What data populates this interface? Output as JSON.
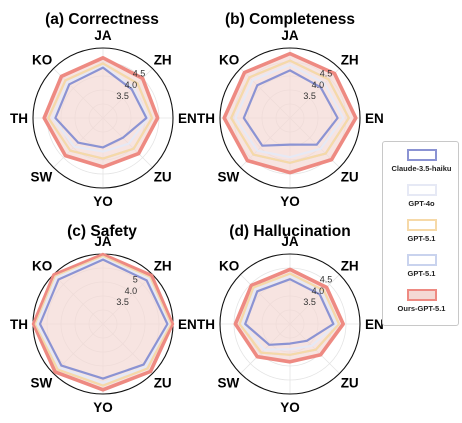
{
  "axes": [
    "JA",
    "ZH",
    "EN",
    "ZU",
    "YO",
    "SW",
    "TH",
    "KO"
  ],
  "legend_entries": [
    "Claude-3.5-haiku",
    "GPT-4o",
    "GPT-5.1",
    "GPT-5.1",
    "Ours-GPT-5.1"
  ],
  "colors": {
    "Claude-3.5-haiku": "#8b93d3",
    "GPT-4o": "#e6e9f5",
    "GPT-5.1-orange": "#f6d9a8",
    "GPT-5.1-blue": "#c9d3ee",
    "Ours-GPT-5.1": "#ee8a82",
    "ours_fill": "#f4d9d4"
  },
  "chart_data": [
    {
      "type": "radar",
      "title": "(a) Correctness",
      "categories": [
        "JA",
        "ZH",
        "EN",
        "ZU",
        "YO",
        "SW",
        "TH",
        "KO"
      ],
      "rlim": [
        2.5,
        5.0
      ],
      "rticks": [
        "3.5",
        "4.0",
        "4.5"
      ],
      "series": [
        {
          "name": "Claude-3.5-haiku",
          "values": [
            4.3,
            3.95,
            4.05,
            3.5,
            3.55,
            3.75,
            4.2,
            4.2
          ]
        },
        {
          "name": "GPT-4o",
          "values": [
            4.35,
            4.05,
            4.1,
            3.8,
            3.7,
            3.95,
            4.3,
            4.3
          ]
        },
        {
          "name": "GPT-5.1",
          "values": [
            4.45,
            4.25,
            4.25,
            4.05,
            3.95,
            4.15,
            4.45,
            4.4
          ]
        },
        {
          "name": "GPT-5.1",
          "values": [
            4.45,
            4.25,
            4.25,
            4.05,
            3.95,
            4.15,
            4.45,
            4.4
          ]
        },
        {
          "name": "Ours-GPT-5.1",
          "values": [
            4.65,
            4.5,
            4.45,
            4.3,
            4.25,
            4.4,
            4.6,
            4.6
          ]
        }
      ]
    },
    {
      "type": "radar",
      "title": "(b) Completeness",
      "categories": [
        "JA",
        "ZH",
        "EN",
        "ZU",
        "YO",
        "SW",
        "TH",
        "KO"
      ],
      "rlim": [
        2.5,
        5.0
      ],
      "rticks": [
        "3.5",
        "4.0",
        "4.5"
      ],
      "series": [
        {
          "name": "Claude-3.5-haiku",
          "values": [
            4.2,
            4.05,
            4.2,
            3.85,
            3.45,
            3.9,
            4.15,
            4.15
          ]
        },
        {
          "name": "GPT-4o",
          "values": [
            4.4,
            4.25,
            4.4,
            4.05,
            3.9,
            4.15,
            4.45,
            4.4
          ]
        },
        {
          "name": "GPT-5.1",
          "values": [
            4.55,
            4.45,
            4.6,
            4.3,
            4.1,
            4.35,
            4.6,
            4.55
          ]
        },
        {
          "name": "GPT-5.1",
          "values": [
            4.55,
            4.45,
            4.6,
            4.3,
            4.1,
            4.35,
            4.6,
            4.55
          ]
        },
        {
          "name": "Ours-GPT-5.1",
          "values": [
            4.8,
            4.75,
            4.85,
            4.6,
            4.45,
            4.65,
            4.85,
            4.8
          ]
        }
      ]
    },
    {
      "type": "radar",
      "title": "(c) Safety",
      "categories": [
        "JA",
        "ZH",
        "EN",
        "ZU",
        "YO",
        "SW",
        "TH",
        "KO"
      ],
      "rlim": [
        2.5,
        5.0
      ],
      "rticks": [
        "3.5",
        "4.0",
        "5"
      ],
      "series": [
        {
          "name": "Claude-3.5-haiku",
          "values": [
            4.8,
            4.7,
            4.8,
            4.55,
            4.45,
            4.6,
            4.75,
            4.75
          ]
        },
        {
          "name": "GPT-4o",
          "values": [
            4.85,
            4.8,
            4.85,
            4.65,
            4.6,
            4.7,
            4.85,
            4.85
          ]
        },
        {
          "name": "GPT-5.1",
          "values": [
            4.9,
            4.85,
            4.9,
            4.75,
            4.7,
            4.8,
            4.9,
            4.9
          ]
        },
        {
          "name": "GPT-5.1",
          "values": [
            4.9,
            4.85,
            4.9,
            4.75,
            4.7,
            4.8,
            4.9,
            4.9
          ]
        },
        {
          "name": "Ours-GPT-5.1",
          "values": [
            4.98,
            4.95,
            4.98,
            4.9,
            4.85,
            4.92,
            4.98,
            4.98
          ]
        }
      ]
    },
    {
      "type": "radar",
      "title": "(d) Hallucination",
      "categories": [
        "JA",
        "ZH",
        "EN",
        "ZU",
        "YO",
        "SW",
        "TH",
        "KO"
      ],
      "rlim": [
        2.5,
        5.0
      ],
      "rticks": [
        "3.5",
        "4.0",
        "4.5"
      ],
      "series": [
        {
          "name": "Claude-3.5-haiku",
          "values": [
            4.1,
            4.0,
            4.05,
            3.35,
            3.2,
            3.55,
            4.1,
            4.15
          ]
        },
        {
          "name": "GPT-4o",
          "values": [
            4.2,
            4.1,
            4.15,
            3.6,
            3.4,
            3.8,
            4.2,
            4.25
          ]
        },
        {
          "name": "GPT-5.1",
          "values": [
            4.3,
            4.2,
            4.25,
            3.8,
            3.6,
            3.95,
            4.3,
            4.35
          ]
        },
        {
          "name": "GPT-5.1",
          "values": [
            4.3,
            4.2,
            4.25,
            3.8,
            3.6,
            3.95,
            4.3,
            4.35
          ]
        },
        {
          "name": "Ours-GPT-5.1",
          "values": [
            4.45,
            4.35,
            4.4,
            4.05,
            3.85,
            4.15,
            4.45,
            4.45
          ]
        }
      ]
    }
  ]
}
